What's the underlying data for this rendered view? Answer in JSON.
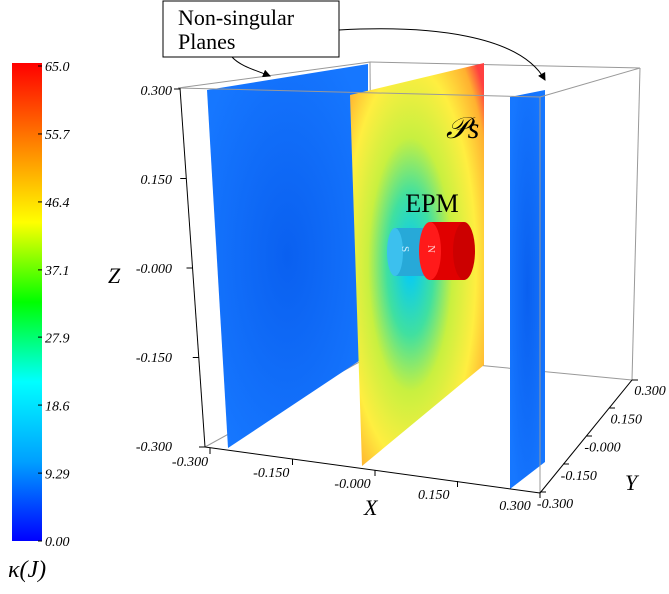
{
  "chart_data": {
    "type": "volume-slices",
    "annotations": {
      "callout": [
        "Non-singular",
        "Planes"
      ],
      "magnet": "EPM",
      "plane": "𝒫s",
      "south": "S",
      "north": "N"
    },
    "colorbar": {
      "label": "κ(J)",
      "lim": [
        0,
        65
      ],
      "colors": [
        "#0000ff",
        "#00a0ff",
        "#00ffff",
        "#00ff00",
        "#ffff00",
        "#ff8000",
        "#ff0000"
      ],
      "ticks": [
        {
          "value": 65,
          "label": "65.0"
        },
        55.7,
        46.4,
        37.1,
        27.9,
        18.6,
        9.29,
        {
          "value": 0,
          "label": "0.00"
        }
      ]
    },
    "xlabel": "X",
    "ylabel": "Y",
    "zlabel": "Z",
    "xlim": [
      -0.3,
      0.3
    ],
    "ylim": [
      -0.3,
      0.3
    ],
    "zlim": [
      -0.3,
      0.3
    ],
    "xticks": [
      {
        "value": -0.3,
        "label": "-0.300"
      },
      {
        "value": -0.15,
        "label": "-0.150"
      },
      {
        "value": 0,
        "label": "-0.000"
      },
      {
        "value": 0.15,
        "label": "0.150"
      },
      {
        "value": 0.3,
        "label": "0.300"
      }
    ],
    "yticks": [
      {
        "value": 0.3,
        "label": "0.300"
      },
      {
        "value": 0.15,
        "label": "0.150"
      },
      {
        "value": 0,
        "label": "-0.000"
      },
      {
        "value": -0.15,
        "label": "-0.150"
      },
      {
        "value": -0.3,
        "label": "-0.300"
      }
    ],
    "zticks": [
      {
        "value": 0.3,
        "label": "0.300"
      },
      {
        "value": 0.15,
        "label": "0.150"
      },
      {
        "value": 0,
        "label": "-0.000"
      },
      {
        "value": -0.15,
        "label": "-0.150"
      },
      {
        "value": -0.3,
        "label": "-0.300"
      }
    ]
  }
}
